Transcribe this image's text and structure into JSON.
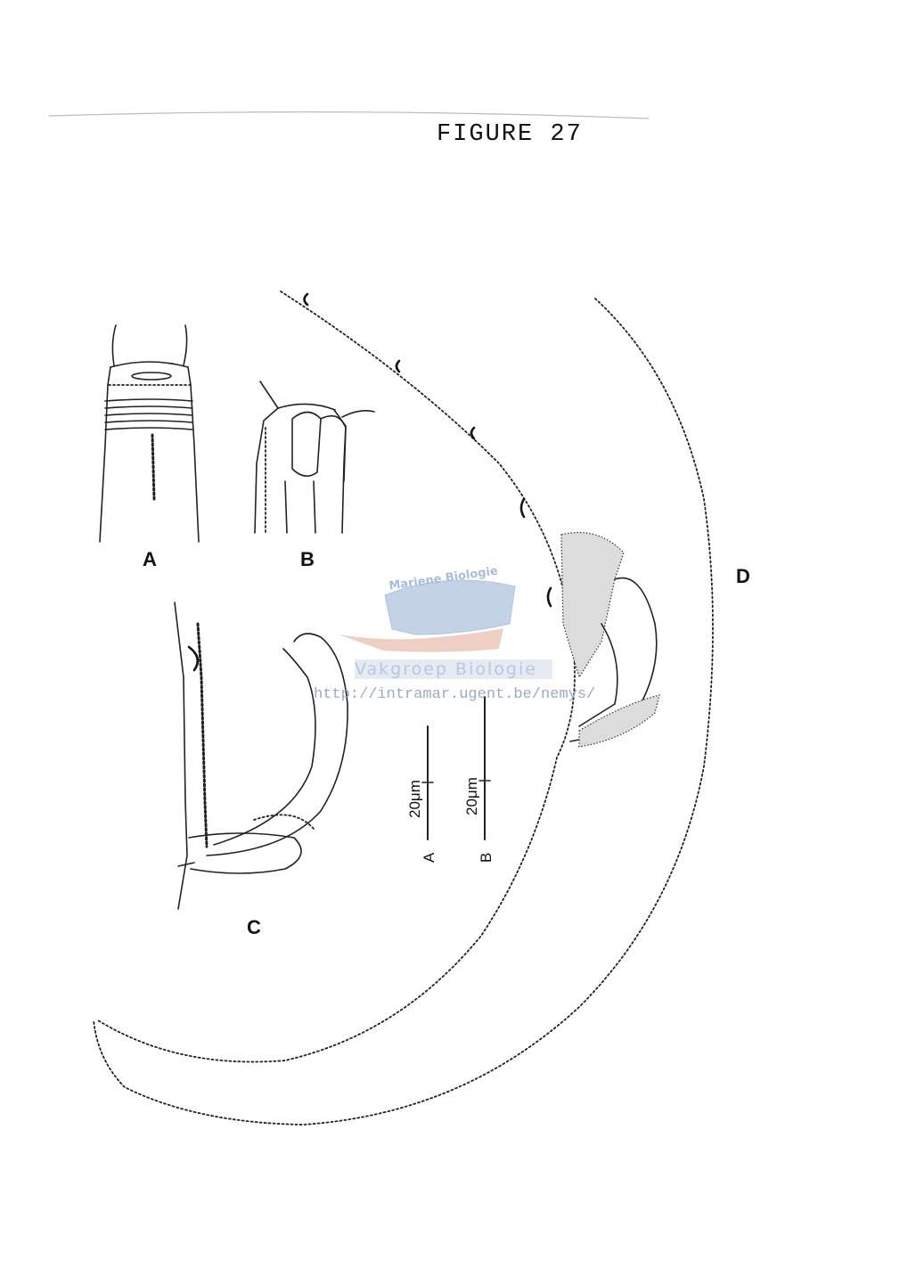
{
  "figure": {
    "title": "FIGURE 27"
  },
  "panels": {
    "a_label": "A",
    "b_label": "B",
    "c_label": "C",
    "d_label": "D"
  },
  "scale_bars": {
    "a_value": "20μm",
    "a_letter": "A",
    "b_value": "20μm",
    "b_letter": "B"
  },
  "watermark": {
    "arc_text": "Mariene Biologie",
    "group_text": "Vakgroep Biologie",
    "url": "http://intramar.ugent.be/nemys/",
    "colors": {
      "blue": "#9fb6d6",
      "salmon": "#e9b7a6"
    }
  }
}
